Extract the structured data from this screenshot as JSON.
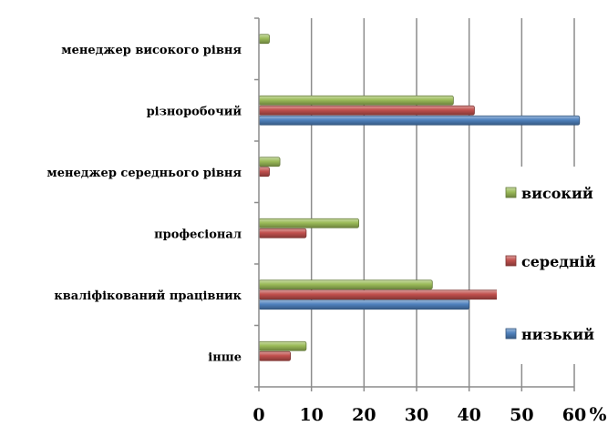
{
  "chart_data": {
    "type": "bar",
    "orientation": "horizontal",
    "categories": [
      "менеджер високого рівня",
      "різноробочий",
      "менеджер середнього рівня",
      "професіонал",
      "кваліфікований працівник",
      "інше"
    ],
    "series": [
      {
        "name": "високий",
        "color": "#9BBB59",
        "values": [
          2,
          37,
          4,
          19,
          33,
          9
        ]
      },
      {
        "name": "середній",
        "color": "#C0504D",
        "values": [
          0,
          41,
          2,
          9,
          46,
          6
        ]
      },
      {
        "name": "низький",
        "color": "#4F81BD",
        "values": [
          0,
          61,
          0,
          0,
          40,
          0
        ]
      }
    ],
    "xlim": [
      0,
      60
    ],
    "xticks": [
      0,
      10,
      20,
      30,
      40,
      50,
      60
    ],
    "x_unit": "%",
    "grid": "vertical",
    "legend_position": "right"
  }
}
